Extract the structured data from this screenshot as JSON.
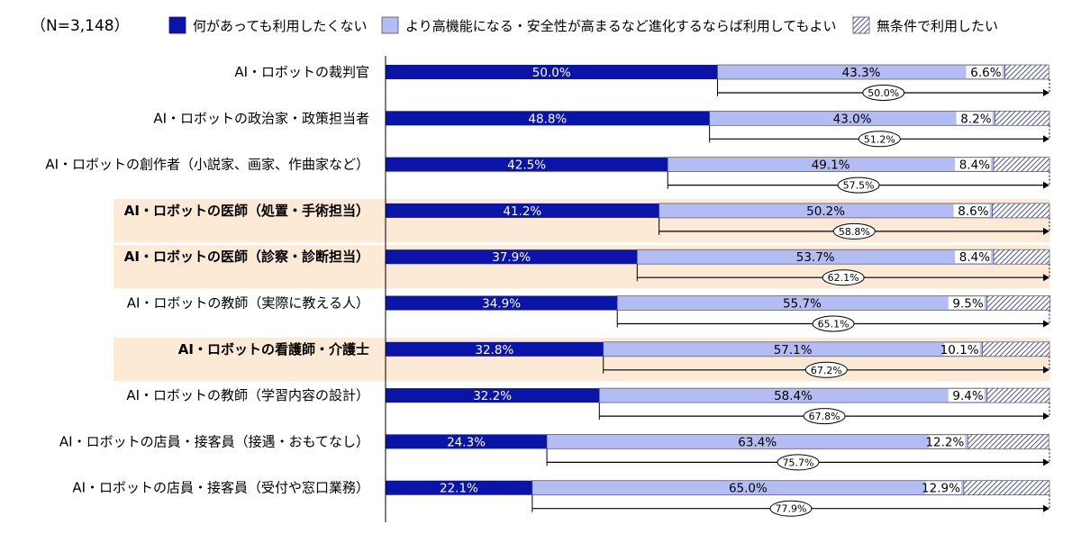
{
  "chart_data": {
    "type": "bar",
    "stacked": true,
    "orientation": "horizontal",
    "sample_size": "（N=3,148）",
    "categories": [
      "AI・ロボットの裁判官",
      "AI・ロボットの政治家・政策担当者",
      "AI・ロボットの創作者（小説家、画家、作曲家など）",
      "AI・ロボットの医師（処置・手術担当）",
      "AI・ロボットの医師（診察・診断担当）",
      "AI・ロボットの教師（実際に教える人）",
      "AI・ロボットの看護師・介護士",
      "AI・ロボットの教師（学習内容の設計）",
      "AI・ロボットの店員・接客員（接遇・おもてなし）",
      "AI・ロボットの店員・接客員（受付や窓口業務）"
    ],
    "highlighted_categories": [
      "AI・ロボットの医師（処置・手術担当）",
      "AI・ロボットの医師（診察・診断担当）",
      "AI・ロボットの看護師・介護士"
    ],
    "series": [
      {
        "name": "何があっても利用したくない",
        "values": [
          50.0,
          48.8,
          42.5,
          41.2,
          37.9,
          34.9,
          32.8,
          32.2,
          24.3,
          22.1
        ],
        "labels": [
          "50.0%",
          "48.8%",
          "42.5%",
          "41.2%",
          "37.9%",
          "34.9%",
          "32.8%",
          "32.2%",
          "24.3%",
          "22.1%"
        ],
        "color": "#0a14a8"
      },
      {
        "name": "より高機能になる・安全性が高まるなど進化するならば利用してもよい",
        "values": [
          43.3,
          43.0,
          49.1,
          50.2,
          53.7,
          55.7,
          57.1,
          58.4,
          63.4,
          65.0
        ],
        "labels": [
          "43.3%",
          "43.0%",
          "49.1%",
          "50.2%",
          "53.7%",
          "55.7%",
          "57.1%",
          "58.4%",
          "63.4%",
          "65.0%"
        ],
        "color": "#b4bcf4"
      },
      {
        "name": "無条件で利用したい",
        "values": [
          6.6,
          8.2,
          8.4,
          8.6,
          8.4,
          9.5,
          10.1,
          9.4,
          12.2,
          12.9
        ],
        "labels": [
          "6.6%",
          "8.2%",
          "8.4%",
          "8.6%",
          "8.4%",
          "9.5%",
          "10.1%",
          "9.4%",
          "12.2%",
          "12.9%"
        ],
        "color": "#1a2590",
        "pattern": "hatched"
      }
    ],
    "totals": {
      "values": [
        50.0,
        51.2,
        57.5,
        58.8,
        62.1,
        65.1,
        67.2,
        67.8,
        75.7,
        77.9
      ],
      "labels": [
        "50.0%",
        "51.2%",
        "57.5%",
        "58.8%",
        "62.1%",
        "65.1%",
        "67.2%",
        "67.8%",
        "75.7%",
        "77.9%"
      ]
    },
    "colors": {
      "highlight_background": "#fce9d6",
      "axis": "#000000",
      "segment_border": "#555555",
      "bracket": "#000000",
      "text": "#000000",
      "inner_label_on_dark": "#ffffff"
    },
    "xlim": [
      0,
      100
    ],
    "grid": false,
    "legend": "top",
    "xlabel": "",
    "ylabel": "",
    "title": ""
  }
}
